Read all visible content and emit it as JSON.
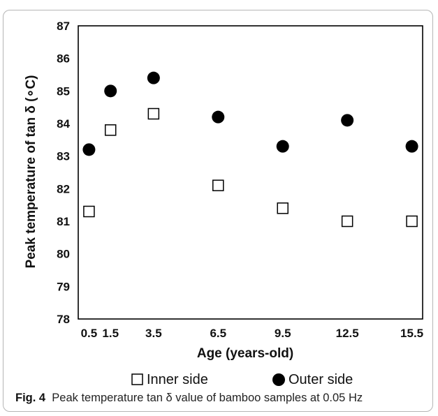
{
  "chart_data": {
    "type": "scatter",
    "xlabel": "Age (years-old)",
    "ylabel": "Peak temperature of tan δ (∘C)",
    "ylim": [
      78,
      87
    ],
    "yticks": [
      78,
      79,
      80,
      81,
      82,
      83,
      84,
      85,
      86,
      87
    ],
    "xticks": [
      0.5,
      1.5,
      3.5,
      6.5,
      9.5,
      12.5,
      15.5
    ],
    "xlim": [
      0,
      16
    ],
    "grid": false,
    "legend_position": "bottom",
    "series": [
      {
        "name": "Inner side",
        "marker": "open-square",
        "color": "#000000",
        "x": [
          0.5,
          1.5,
          3.5,
          6.5,
          9.5,
          12.5,
          15.5
        ],
        "y": [
          81.3,
          83.8,
          84.3,
          82.1,
          81.4,
          81.0,
          81.0
        ]
      },
      {
        "name": "Outer side",
        "marker": "filled-circle",
        "color": "#000000",
        "x": [
          0.5,
          1.5,
          3.5,
          6.5,
          9.5,
          12.5,
          15.5
        ],
        "y": [
          83.2,
          85.0,
          85.4,
          84.2,
          83.3,
          84.1,
          83.3
        ]
      }
    ]
  },
  "caption": {
    "label": "Fig. 4",
    "text": "Peak temperature tan δ value of bamboo samples at 0.05 Hz"
  }
}
